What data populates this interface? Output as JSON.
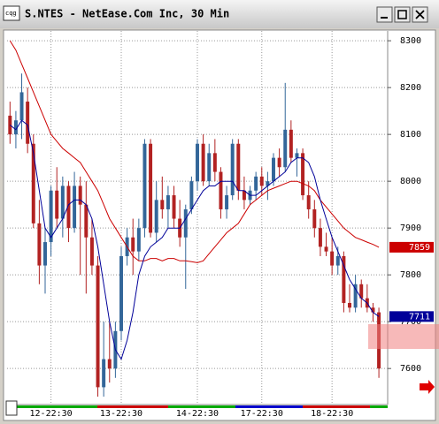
{
  "window": {
    "title": "S.NTES - NetEase.Com Inc, 30 Min"
  },
  "chart_data": {
    "type": "candlestick",
    "up_color": "#336699",
    "down_color": "#b22222",
    "xlim": [
      -0.5,
      64.5
    ],
    "xticks": [
      {
        "value": 7,
        "label": "12-22:30"
      },
      {
        "value": 19,
        "label": "13-22:30"
      },
      {
        "value": 32,
        "label": "14-22:30"
      },
      {
        "value": 43,
        "label": "17-22:30"
      },
      {
        "value": 55,
        "label": "18-22:30"
      }
    ],
    "ylim": [
      7523,
      8321
    ],
    "yticks": [
      7600,
      7700,
      7800,
      7900,
      8000,
      8100,
      8200,
      8300
    ],
    "grid": true,
    "ohlc": [
      [
        8140,
        8170,
        8080,
        8100
      ],
      [
        8100,
        8150,
        8070,
        8130
      ],
      [
        8130,
        8230,
        8090,
        8190
      ],
      [
        8170,
        8200,
        8060,
        8080
      ],
      [
        8080,
        8100,
        7900,
        7910
      ],
      [
        7910,
        7960,
        7780,
        7820
      ],
      [
        7820,
        7900,
        7760,
        7870
      ],
      [
        7870,
        7990,
        7840,
        7980
      ],
      [
        7980,
        8030,
        7900,
        7920
      ],
      [
        7920,
        8010,
        7880,
        7990
      ],
      [
        7990,
        8000,
        7870,
        7900
      ],
      [
        7900,
        8020,
        7890,
        7990
      ],
      [
        7990,
        8010,
        7800,
        7950
      ],
      [
        7950,
        8000,
        7760,
        7880
      ],
      [
        7880,
        7920,
        7800,
        7820
      ],
      [
        7820,
        7840,
        7540,
        7560
      ],
      [
        7560,
        7700,
        7540,
        7620
      ],
      [
        7620,
        7700,
        7570,
        7600
      ],
      [
        7600,
        7700,
        7580,
        7680
      ],
      [
        7680,
        7860,
        7660,
        7840
      ],
      [
        7840,
        7900,
        7820,
        7880
      ],
      [
        7880,
        7920,
        7800,
        7850
      ],
      [
        7850,
        7920,
        7830,
        7900
      ],
      [
        7900,
        8090,
        7880,
        8080
      ],
      [
        8080,
        8090,
        7880,
        7890
      ],
      [
        7890,
        8000,
        7870,
        7960
      ],
      [
        7960,
        8010,
        7920,
        7940
      ],
      [
        7940,
        7990,
        7900,
        7970
      ],
      [
        7970,
        7990,
        7900,
        7920
      ],
      [
        7920,
        7960,
        7860,
        7880
      ],
      [
        7880,
        7950,
        7770,
        7940
      ],
      [
        7940,
        8010,
        7930,
        8000
      ],
      [
        8000,
        8090,
        7980,
        8080
      ],
      [
        8080,
        8100,
        7990,
        8000
      ],
      [
        8000,
        8080,
        7990,
        8060
      ],
      [
        8060,
        8090,
        8000,
        8020
      ],
      [
        8020,
        8030,
        7920,
        7940
      ],
      [
        7940,
        7990,
        7920,
        7970
      ],
      [
        7970,
        8090,
        7960,
        8080
      ],
      [
        8080,
        8090,
        7960,
        7980
      ],
      [
        7980,
        8010,
        7940,
        7960
      ],
      [
        7960,
        7990,
        7950,
        7980
      ],
      [
        7980,
        8020,
        7960,
        8010
      ],
      [
        8010,
        8030,
        7970,
        7990
      ],
      [
        7990,
        8020,
        7960,
        8000
      ],
      [
        8000,
        8060,
        7990,
        8050
      ],
      [
        8050,
        8070,
        8010,
        8030
      ],
      [
        8030,
        8210,
        8020,
        8110
      ],
      [
        8110,
        8130,
        8040,
        8050
      ],
      [
        8050,
        8070,
        8010,
        8060
      ],
      [
        8060,
        8070,
        7960,
        7970
      ],
      [
        7970,
        8000,
        7920,
        7940
      ],
      [
        7940,
        7960,
        7880,
        7900
      ],
      [
        7900,
        7920,
        7840,
        7860
      ],
      [
        7860,
        7890,
        7840,
        7850
      ],
      [
        7850,
        7880,
        7800,
        7820
      ],
      [
        7820,
        7860,
        7800,
        7840
      ],
      [
        7840,
        7850,
        7720,
        7740
      ],
      [
        7740,
        7780,
        7720,
        7730
      ],
      [
        7730,
        7800,
        7720,
        7780
      ],
      [
        7780,
        7790,
        7730,
        7750
      ],
      [
        7750,
        7780,
        7720,
        7730
      ],
      [
        7730,
        7740,
        7700,
        7720
      ],
      [
        7720,
        7730,
        7580,
        7600
      ]
    ],
    "lines": [
      {
        "color": "#cc0000",
        "values": [
          8300,
          8280,
          8250,
          8220,
          8190,
          8160,
          8130,
          8100,
          8085,
          8070,
          8060,
          8050,
          8040,
          8020,
          8000,
          7980,
          7950,
          7920,
          7900,
          7880,
          7860,
          7840,
          7830,
          7830,
          7835,
          7835,
          7830,
          7835,
          7835,
          7830,
          7830,
          7828,
          7826,
          7830,
          7845,
          7860,
          7875,
          7890,
          7900,
          7910,
          7930,
          7950,
          7960,
          7970,
          7980,
          7985,
          7990,
          7995,
          8000,
          8000,
          7995,
          7990,
          7980,
          7960,
          7945,
          7930,
          7915,
          7900,
          7890,
          7880,
          7875,
          7870,
          7865,
          7859
        ]
      },
      {
        "color": "#000099",
        "values": [
          8120,
          8110,
          8130,
          8120,
          8060,
          7980,
          7900,
          7880,
          7900,
          7920,
          7950,
          7960,
          7960,
          7950,
          7920,
          7860,
          7780,
          7700,
          7640,
          7620,
          7660,
          7720,
          7800,
          7840,
          7860,
          7870,
          7880,
          7900,
          7900,
          7900,
          7920,
          7940,
          7960,
          7980,
          7990,
          7990,
          8000,
          8000,
          8000,
          7980,
          7980,
          7970,
          7970,
          7980,
          7990,
          8000,
          8010,
          8020,
          8040,
          8050,
          8050,
          8040,
          8010,
          7960,
          7920,
          7880,
          7850,
          7820,
          7790,
          7770,
          7750,
          7740,
          7720,
          7711
        ]
      }
    ]
  }
}
